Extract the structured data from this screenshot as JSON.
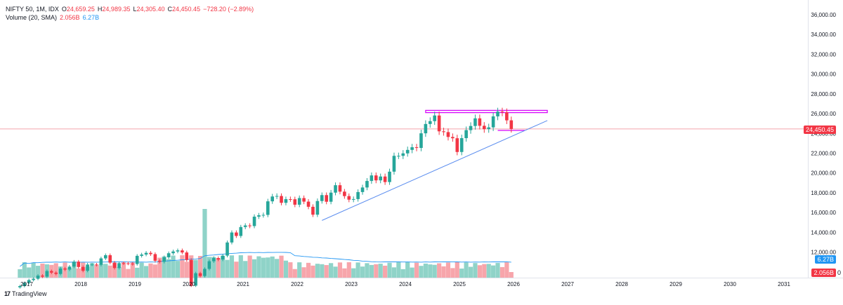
{
  "legend": {
    "symbol": "NIFTY 50, 1M, IDX",
    "o_label": "O",
    "o_value": "24,659.25",
    "h_label": "H",
    "h_value": "24,989.35",
    "l_label": "L",
    "l_value": "24,305.40",
    "c_label": "C",
    "c_value": "24,450.45",
    "change": "−728.20 (−2.89%)",
    "volume_label": "Volume (20, SMA)",
    "volume_value": "2.056B",
    "volume_ma": "6.27B"
  },
  "price_tags": {
    "last_price": "24,450.45",
    "volume_ma": "6.27B",
    "volume_last": "2.056B",
    "volume_zero": "0"
  },
  "footer": {
    "brand": "TradingView",
    "logo": "17"
  },
  "colors": {
    "up": "#26a69a",
    "down": "#f23645",
    "up_volume": "#8fd3c8",
    "down_volume": "#f7a5ab",
    "ma_line": "#2196f3",
    "trend_line": "#5b8def",
    "zone": "#d500f9",
    "last_price_line": "#f4a3ab",
    "axis_text": "#131722"
  },
  "chart_data": {
    "type": "candlestick",
    "title": "NIFTY 50, 1M, IDX",
    "interval": "1M",
    "x_axis_labels": [
      "2017",
      "2018",
      "2019",
      "2020",
      "2021",
      "2022",
      "2023",
      "2024",
      "2025",
      "2026",
      "2027",
      "2028",
      "2029",
      "2030",
      "2031"
    ],
    "y_axis_labels": [
      "12,000.00",
      "14,000.00",
      "16,000.00",
      "18,000.00",
      "20,000.00",
      "22,000.00",
      "24,000.00",
      "26,000.00",
      "28,000.00",
      "30,000.00",
      "32,000.00",
      "34,000.00",
      "36,000.00"
    ],
    "ylim": [
      10500,
      36500
    ],
    "grid": false,
    "last_price": 24450.45,
    "closes": [
      8560,
      8880,
      9170,
      9300,
      9620,
      9520,
      10080,
      9920,
      9790,
      10340,
      10230,
      10530,
      11030,
      10490,
      10110,
      10740,
      10740,
      10710,
      11360,
      11680,
      10930,
      10390,
      10880,
      10860,
      10830,
      10790,
      11620,
      11750,
      11920,
      11790,
      11120,
      11020,
      11470,
      11880,
      12060,
      12170,
      11960,
      11200,
      8600,
      9860,
      9580,
      10300,
      11070,
      11390,
      11250,
      11640,
      12970,
      13980,
      13630,
      14530,
      14690,
      14630,
      15580,
      15720,
      15760,
      17130,
      17620,
      17670,
      16980,
      17350,
      17340,
      16790,
      17460,
      17100,
      16580,
      15780,
      17160,
      17760,
      17090,
      18010,
      18760,
      18110,
      17660,
      17300,
      17360,
      18070,
      18530,
      19190,
      19750,
      19250,
      19640,
      19080,
      20130,
      21730,
      21730,
      21980,
      22330,
      22600,
      22530,
      24010,
      24950,
      25240,
      25810,
      24210,
      24130,
      23640,
      23510,
      22120,
      23520,
      24330,
      24750,
      25520,
      24770,
      24430,
      24610,
      25720,
      26200,
      26130,
      25320,
      24450
    ],
    "volume_series": [
      {
        "name": "Volume",
        "unit": "B",
        "last_value": 2.056
      },
      {
        "name": "Volume SMA 20",
        "unit": "B",
        "last_value": 6.27
      }
    ],
    "annotations": [
      {
        "type": "resistance_zone",
        "y_range": [
          26100,
          26330
        ],
        "x_range": [
          "2024-05",
          "2026-08"
        ]
      },
      {
        "type": "horizontal_line",
        "y": 24450.45
      },
      {
        "type": "short_line",
        "y": 24300,
        "x_range": [
          "2025-09",
          "2026-03"
        ]
      },
      {
        "type": "trend_line",
        "from": {
          "x": "2022-06",
          "y": 15200
        },
        "to": {
          "x": "2026-08",
          "y": 25300
        }
      }
    ]
  }
}
